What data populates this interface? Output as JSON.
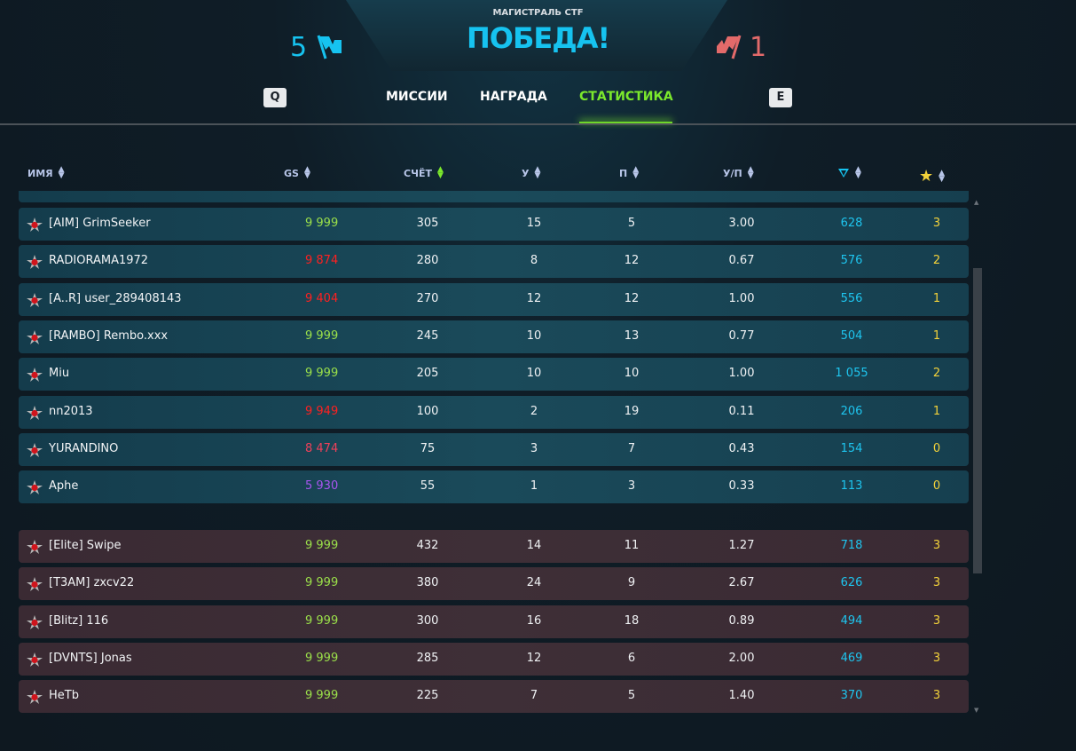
{
  "header": {
    "mode": "МАГИСТРАЛЬ CTF",
    "result": "ПОБЕДА!",
    "blue_score": "5",
    "red_score": "1",
    "colors": {
      "blue": "#16c3f0",
      "red": "#e36a6a"
    }
  },
  "tabs": {
    "prev_key": "Q",
    "next_key": "E",
    "items": [
      {
        "label": "МИССИИ"
      },
      {
        "label": "НАГРАДА"
      },
      {
        "label": "СТАТИСТИКА",
        "active": true
      }
    ]
  },
  "columns": {
    "name": "ИМЯ",
    "gs": "GS",
    "score": "СЧЁТ",
    "kills": "У",
    "deaths": "П",
    "kd": "У/П",
    "crystals_icon": "diamond-icon",
    "stars_icon": "star-icon",
    "sorted_by": "СЧЁТ"
  },
  "blue_team": [
    {
      "name": "[AIM] GrimSeeker",
      "gs": "9 999",
      "gs_color": "#9be04a",
      "score": "305",
      "kills": "15",
      "deaths": "5",
      "kd": "3.00",
      "crystals": "628",
      "stars": "3"
    },
    {
      "name": "RADIORAMA1972",
      "gs": "9 874",
      "gs_color": "#ff2020",
      "score": "280",
      "kills": "8",
      "deaths": "12",
      "kd": "0.67",
      "crystals": "576",
      "stars": "2"
    },
    {
      "name": "[A..R] user_289408143",
      "gs": "9 404",
      "gs_color": "#ff2020",
      "score": "270",
      "kills": "12",
      "deaths": "12",
      "kd": "1.00",
      "crystals": "556",
      "stars": "1"
    },
    {
      "name": "[RAMBO] Rembo.xxx",
      "gs": "9 999",
      "gs_color": "#9be04a",
      "score": "245",
      "kills": "10",
      "deaths": "13",
      "kd": "0.77",
      "crystals": "504",
      "stars": "1"
    },
    {
      "name": "Miu",
      "gs": "9 999",
      "gs_color": "#9be04a",
      "score": "205",
      "kills": "10",
      "deaths": "10",
      "kd": "1.00",
      "crystals": "1 055",
      "stars": "2"
    },
    {
      "name": "nn2013",
      "gs": "9 949",
      "gs_color": "#ff2020",
      "score": "100",
      "kills": "2",
      "deaths": "19",
      "kd": "0.11",
      "crystals": "206",
      "stars": "1"
    },
    {
      "name": "YURANDINO",
      "gs": "8 474",
      "gs_color": "#f0405a",
      "score": "75",
      "kills": "3",
      "deaths": "7",
      "kd": "0.43",
      "crystals": "154",
      "stars": "0"
    },
    {
      "name": "Aphe",
      "gs": "5 930",
      "gs_color": "#a855f0",
      "score": "55",
      "kills": "1",
      "deaths": "3",
      "kd": "0.33",
      "crystals": "113",
      "stars": "0"
    }
  ],
  "red_team": [
    {
      "name": "[Elite] Swipe",
      "gs": "9 999",
      "gs_color": "#9be04a",
      "score": "432",
      "kills": "14",
      "deaths": "11",
      "kd": "1.27",
      "crystals": "718",
      "stars": "3"
    },
    {
      "name": "[T3AM] zxcv22",
      "gs": "9 999",
      "gs_color": "#9be04a",
      "score": "380",
      "kills": "24",
      "deaths": "9",
      "kd": "2.67",
      "crystals": "626",
      "stars": "3"
    },
    {
      "name": "[Blitz] 116",
      "gs": "9 999",
      "gs_color": "#9be04a",
      "score": "300",
      "kills": "16",
      "deaths": "18",
      "kd": "0.89",
      "crystals": "494",
      "stars": "3"
    },
    {
      "name": "[DVNTS] Jonas",
      "gs": "9 999",
      "gs_color": "#9be04a",
      "score": "285",
      "kills": "12",
      "deaths": "6",
      "kd": "2.00",
      "crystals": "469",
      "stars": "3"
    },
    {
      "name": "HeTb",
      "gs": "9 999",
      "gs_color": "#9be04a",
      "score": "225",
      "kills": "7",
      "deaths": "5",
      "kd": "1.40",
      "crystals": "370",
      "stars": "3"
    }
  ]
}
